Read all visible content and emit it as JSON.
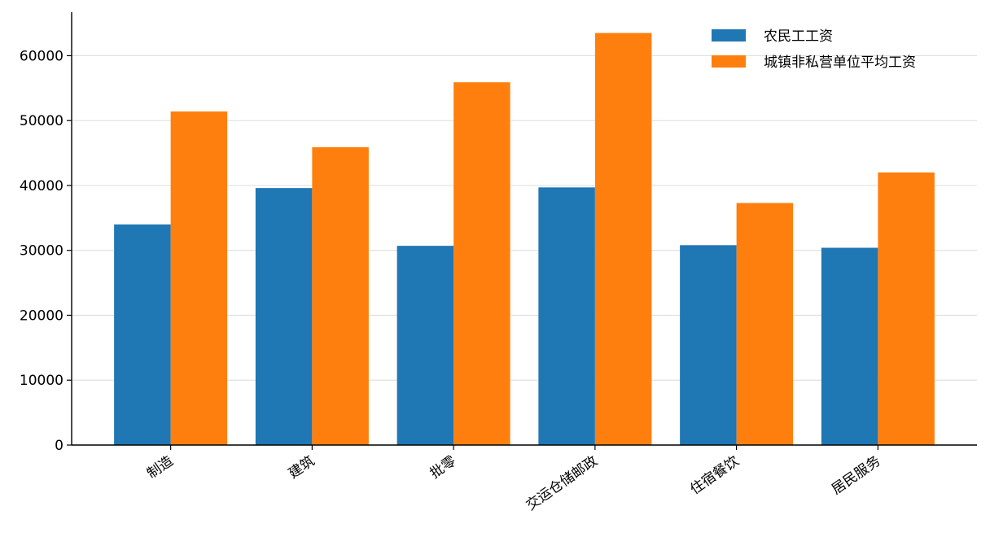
{
  "chart_data": {
    "type": "bar",
    "categories": [
      "制造",
      "建筑",
      "批零",
      "交运仓储邮政",
      "住宿餐饮",
      "居民服务"
    ],
    "series": [
      {
        "name": "农民工工资",
        "color": "#1f77b4",
        "values": [
          34000,
          39600,
          30700,
          39700,
          30800,
          30400
        ]
      },
      {
        "name": "城镇非私营单位平均工资",
        "color": "#ff7f0e",
        "values": [
          51400,
          45900,
          55900,
          63500,
          37300,
          42000
        ]
      }
    ],
    "ylim": [
      0,
      66700
    ],
    "yticks": [
      0,
      10000,
      20000,
      30000,
      40000,
      50000,
      60000
    ],
    "grid": true,
    "legend": "upper right"
  }
}
